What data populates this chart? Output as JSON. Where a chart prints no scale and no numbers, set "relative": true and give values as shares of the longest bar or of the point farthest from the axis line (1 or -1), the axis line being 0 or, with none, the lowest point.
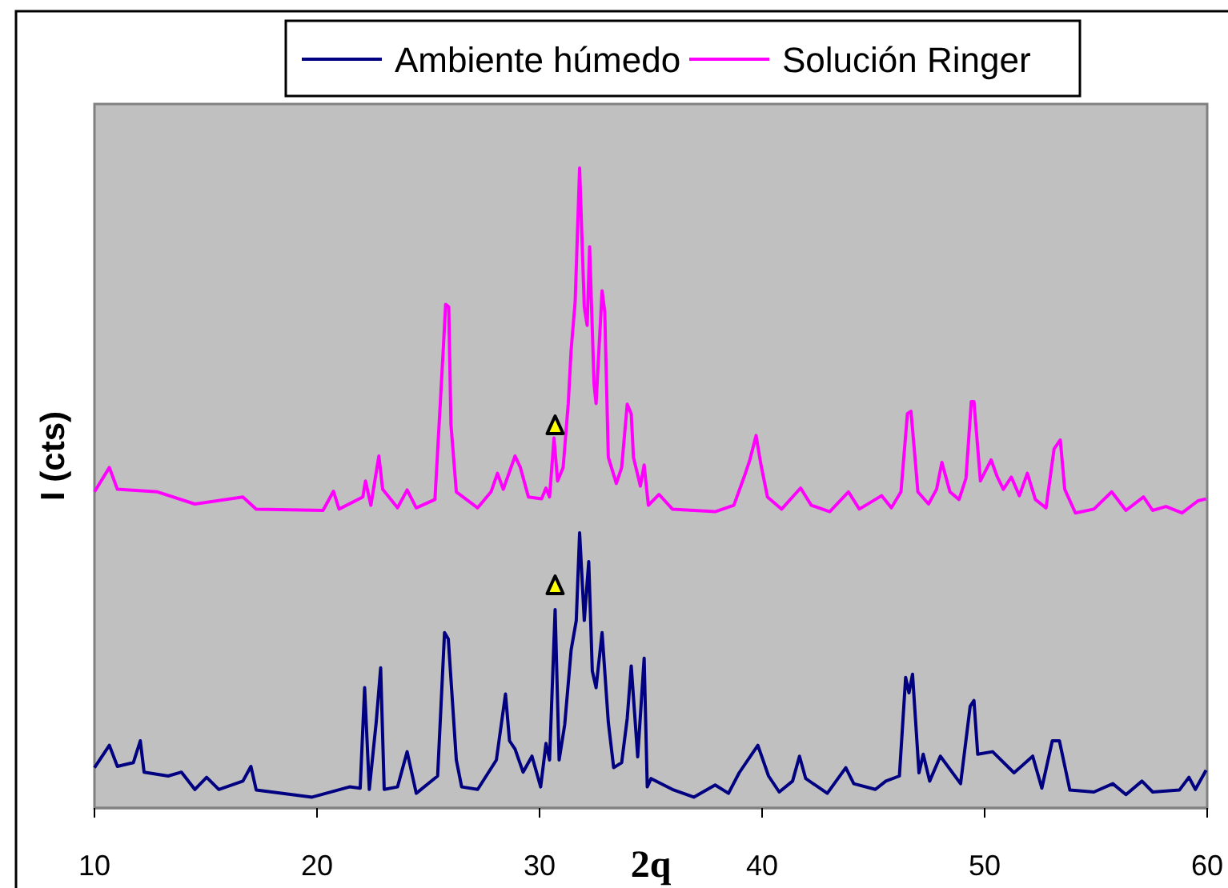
{
  "chart_data": {
    "type": "line",
    "relative": true,
    "xlabel": "2q",
    "ylabel": "I (cts)",
    "xlim": [
      10,
      60
    ],
    "xticks": [
      10,
      20,
      30,
      40,
      50,
      60
    ],
    "tick_labels": "x",
    "legend": "top",
    "marker": "none",
    "line_style": "solid",
    "series": [
      {
        "name": "Ambiente húmedo",
        "color": "#000080",
        "x": [
          10.0,
          10.67,
          11.03,
          11.75,
          12.06,
          12.23,
          13.31,
          13.91,
          14.51,
          15.04,
          15.59,
          16.67,
          17.03,
          17.27,
          19.78,
          21.46,
          21.94,
          22.14,
          22.35,
          22.66,
          22.86,
          23.02,
          23.62,
          24.05,
          24.46,
          25.42,
          25.73,
          25.9,
          26.26,
          26.5,
          27.22,
          28.06,
          28.47,
          28.65,
          28.9,
          29.26,
          29.66,
          30.05,
          30.29,
          30.45,
          30.7,
          30.88,
          31.13,
          31.42,
          31.65,
          31.8,
          32.01,
          32.21,
          32.37,
          32.54,
          32.81,
          33.09,
          33.33,
          33.69,
          33.94,
          34.12,
          34.41,
          34.7,
          34.84,
          35.01,
          35.97,
          36.93,
          37.89,
          38.49,
          38.97,
          39.81,
          40.29,
          40.77,
          41.37,
          41.68,
          41.96,
          42.93,
          43.76,
          44.12,
          45.09,
          45.56,
          46.17,
          46.45,
          46.6,
          46.76,
          47.05,
          47.24,
          47.53,
          48.01,
          48.92,
          49.35,
          49.52,
          49.69,
          50.36,
          51.32,
          52.16,
          52.57,
          53.04,
          53.36,
          53.83,
          54.91,
          55.76,
          56.35,
          57.07,
          57.55,
          58.75,
          59.18,
          59.47,
          59.95
        ],
        "values": [
          0.063,
          0.098,
          0.065,
          0.071,
          0.105,
          0.056,
          0.05,
          0.056,
          0.029,
          0.048,
          0.029,
          0.042,
          0.065,
          0.028,
          0.017,
          0.033,
          0.031,
          0.188,
          0.029,
          0.134,
          0.219,
          0.029,
          0.033,
          0.088,
          0.023,
          0.05,
          0.274,
          0.264,
          0.075,
          0.033,
          0.029,
          0.075,
          0.178,
          0.105,
          0.092,
          0.056,
          0.081,
          0.033,
          0.101,
          0.075,
          0.31,
          0.075,
          0.13,
          0.247,
          0.293,
          0.43,
          0.293,
          0.385,
          0.214,
          0.188,
          0.274,
          0.134,
          0.063,
          0.071,
          0.14,
          0.222,
          0.08,
          0.234,
          0.033,
          0.046,
          0.029,
          0.017,
          0.036,
          0.023,
          0.055,
          0.098,
          0.05,
          0.025,
          0.042,
          0.081,
          0.046,
          0.023,
          0.063,
          0.038,
          0.029,
          0.042,
          0.05,
          0.204,
          0.18,
          0.209,
          0.055,
          0.084,
          0.042,
          0.081,
          0.038,
          0.159,
          0.168,
          0.084,
          0.088,
          0.055,
          0.081,
          0.031,
          0.105,
          0.105,
          0.028,
          0.025,
          0.038,
          0.021,
          0.042,
          0.025,
          0.028,
          0.048,
          0.029,
          0.059
        ]
      },
      {
        "name": "Solución Ringer",
        "color": "#ff00ff",
        "x": [
          10.0,
          10.67,
          11.03,
          12.83,
          14.51,
          16.67,
          17.27,
          20.27,
          20.74,
          20.99,
          22.06,
          22.18,
          22.42,
          22.78,
          22.95,
          23.62,
          24.05,
          24.46,
          25.3,
          25.66,
          25.78,
          25.92,
          26.02,
          26.26,
          27.22,
          27.82,
          28.11,
          28.37,
          28.9,
          29.14,
          29.5,
          30.09,
          30.29,
          30.45,
          30.65,
          30.81,
          31.06,
          31.29,
          31.42,
          31.6,
          31.8,
          32.01,
          32.14,
          32.25,
          32.45,
          32.54,
          32.81,
          32.93,
          33.09,
          33.45,
          33.69,
          33.94,
          34.12,
          34.22,
          34.53,
          34.7,
          34.89,
          35.37,
          35.97,
          37.89,
          38.73,
          39.21,
          39.45,
          39.73,
          39.93,
          40.24,
          40.88,
          41.73,
          42.21,
          43.04,
          43.88,
          44.37,
          45.37,
          45.81,
          46.24,
          46.53,
          46.69,
          46.88,
          47.0,
          47.48,
          47.84,
          48.08,
          48.44,
          48.85,
          49.16,
          49.4,
          49.52,
          49.81,
          50.29,
          50.55,
          50.84,
          51.2,
          51.56,
          51.92,
          52.28,
          52.76,
          53.12,
          53.4,
          53.6,
          54.08,
          54.91,
          55.71,
          56.35,
          57.14,
          57.55,
          58.15,
          58.87,
          59.59,
          59.95
        ],
        "values": [
          0.494,
          0.532,
          0.498,
          0.494,
          0.475,
          0.486,
          0.467,
          0.465,
          0.495,
          0.467,
          0.486,
          0.511,
          0.473,
          0.55,
          0.498,
          0.469,
          0.497,
          0.469,
          0.482,
          0.708,
          0.787,
          0.783,
          0.599,
          0.494,
          0.469,
          0.494,
          0.523,
          0.498,
          0.55,
          0.532,
          0.486,
          0.483,
          0.5,
          0.486,
          0.578,
          0.511,
          0.532,
          0.632,
          0.716,
          0.791,
          1.0,
          0.783,
          0.754,
          0.877,
          0.662,
          0.632,
          0.808,
          0.775,
          0.548,
          0.507,
          0.532,
          0.631,
          0.616,
          0.548,
          0.503,
          0.536,
          0.473,
          0.49,
          0.467,
          0.463,
          0.473,
          0.519,
          0.544,
          0.582,
          0.54,
          0.486,
          0.467,
          0.5,
          0.473,
          0.463,
          0.494,
          0.467,
          0.488,
          0.469,
          0.494,
          0.616,
          0.62,
          0.544,
          0.494,
          0.475,
          0.498,
          0.54,
          0.494,
          0.482,
          0.515,
          0.635,
          0.635,
          0.511,
          0.544,
          0.519,
          0.498,
          0.517,
          0.488,
          0.523,
          0.482,
          0.469,
          0.561,
          0.575,
          0.498,
          0.461,
          0.467,
          0.494,
          0.465,
          0.486,
          0.465,
          0.471,
          0.461,
          0.48,
          0.483
        ]
      }
    ]
  }
}
